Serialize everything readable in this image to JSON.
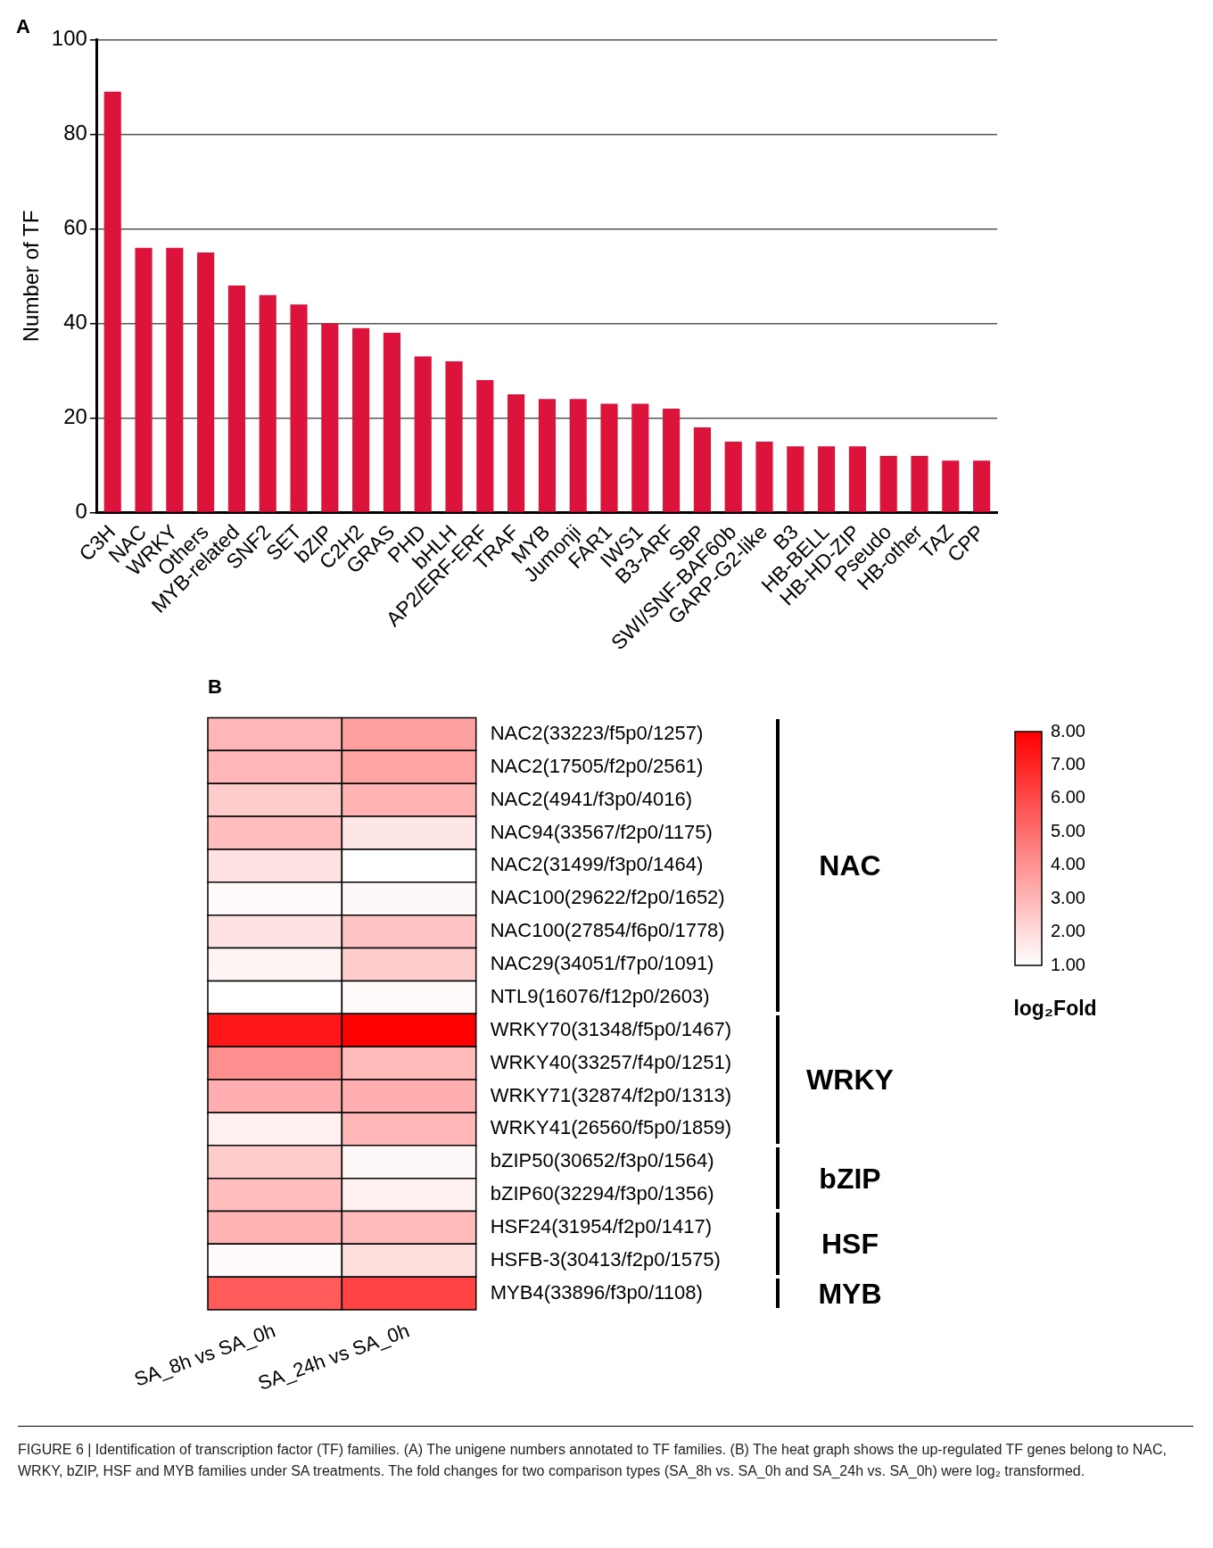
{
  "chart_data": [
    {
      "type": "bar",
      "title": "A",
      "ylabel": "Number of TF",
      "categories": [
        "C3H",
        "NAC",
        "WRKY",
        "Others",
        "MYB-related",
        "SNF2",
        "SET",
        "bZIP",
        "C2H2",
        "GRAS",
        "PHD",
        "bHLH",
        "AP2/ERF-ERF",
        "TRAF",
        "MYB",
        "Jumonji",
        "FAR1",
        "IWS1",
        "B3-ARF",
        "SBP",
        "SWI/SNF-BAF60b",
        "GARP-G2-like",
        "B3",
        "HB-BELL",
        "HB-HD-ZIP",
        "Pseudo",
        "HB-other",
        "TAZ",
        "CPP"
      ],
      "values": [
        89,
        56,
        56,
        55,
        48,
        46,
        44,
        40,
        39,
        38,
        33,
        32,
        28,
        25,
        24,
        24,
        23,
        23,
        22,
        18,
        15,
        15,
        14,
        14,
        14,
        12,
        12,
        11,
        11
      ],
      "color": "#dc143c",
      "ylim": [
        0,
        100
      ],
      "yticks": [
        0,
        20,
        40,
        60,
        80,
        100
      ],
      "grid": "y",
      "legend": false
    },
    {
      "type": "heatmap",
      "title": "B",
      "clabel": "log₂Fold",
      "categories": [
        "SA_8h vs SA_0h",
        "SA_24h vs SA_0h"
      ],
      "y_categories": [
        "NAC2(33223/f5p0/1257)",
        "NAC2(17505/f2p0/2561)",
        "NAC2(4941/f3p0/4016)",
        "NAC94(33567/f2p0/1175)",
        "NAC2(31499/f3p0/1464)",
        "NAC100(29622/f2p0/1652)",
        "NAC100(27854/f6p0/1778)",
        "NAC29(34051/f7p0/1091)",
        "NTL9(16076/f12p0/2603)",
        "WRKY70(31348/f5p0/1467)",
        "WRKY40(33257/f4p0/1251)",
        "WRKY71(32874/f2p0/1313)",
        "WRKY41(26560/f5p0/1859)",
        "bZIP50(30652/f3p0/1564)",
        "bZIP60(32294/f3p0/1356)",
        "HSF24(31954/f2p0/1417)",
        "HSFB-3(30413/f2p0/1575)",
        "MYB4(33896/f3p0/1108)"
      ],
      "cells": [
        [
          3.0,
          3.6
        ],
        [
          3.0,
          3.5
        ],
        [
          2.4,
          3.1
        ],
        [
          2.8,
          1.7
        ],
        [
          1.8,
          1.0
        ],
        [
          1.1,
          1.2
        ],
        [
          1.8,
          2.6
        ],
        [
          1.3,
          2.4
        ],
        [
          1.0,
          1.1
        ],
        [
          7.4,
          8.0
        ],
        [
          4.1,
          2.9
        ],
        [
          3.2,
          3.2
        ],
        [
          1.4,
          3.0
        ],
        [
          2.4,
          1.2
        ],
        [
          2.8,
          1.4
        ],
        [
          3.1,
          2.9
        ],
        [
          1.1,
          1.9
        ],
        [
          5.5,
          6.2
        ]
      ],
      "clim": [
        1,
        8
      ],
      "cticks": [
        {
          "value": 1,
          "label": "1.00"
        },
        {
          "value": 2,
          "label": "2.00"
        },
        {
          "value": 3,
          "label": "3.00"
        },
        {
          "value": 4,
          "label": "4.00"
        },
        {
          "value": 5,
          "label": "5.00"
        },
        {
          "value": 6,
          "label": "6.00"
        },
        {
          "value": 7,
          "label": "7.00"
        },
        {
          "value": 8,
          "label": "8.00"
        }
      ],
      "annotations": [
        "NAC",
        "WRKY",
        "bZIP",
        "HSF",
        "MYB",
        "FIGURE 6 | Identification of transcription factor (TF) families. (A) The unigene numbers annotated to TF families. (B) The heat graph shows the up-regulated TF genes belong to NAC, WRKY, bZIP, HSF and MYB families under SA treatments. The fold changes for two comparison types (SA_8h vs. SA_0h and SA_24h vs. SA_0h) were log₂ transformed."
      ]
    }
  ]
}
